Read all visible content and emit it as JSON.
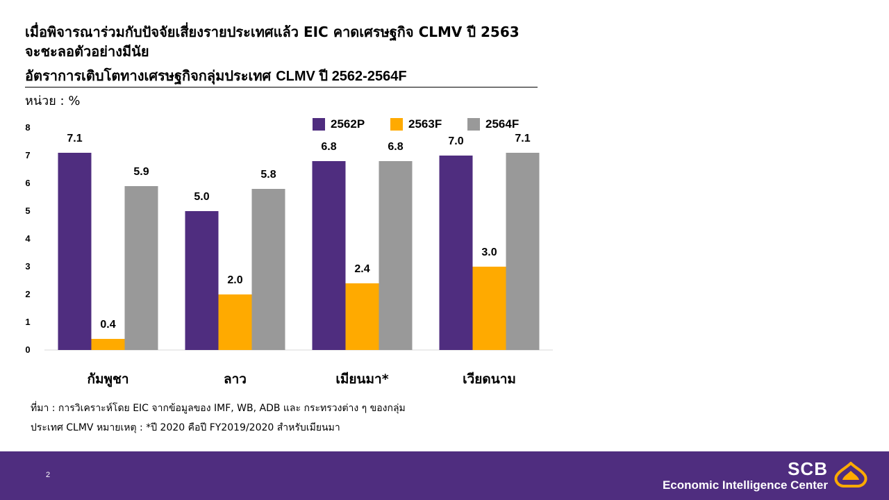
{
  "headline": {
    "line1": "เมื่อพิจารณาร่วมกับปัจจัยเสี่ยงรายประเทศแล้ว EIC คาดเศรษฐกิจ CLMV ปี 2563",
    "line2": "จะชะลอตัวอย่างมีนัย"
  },
  "chart_title": {
    "thai": "อัตราการเติบโตทางเศรษฐกิจกลุ่มประเทศ",
    "latin": "CLMV ปี 2562-2564F"
  },
  "unit_label": "หน่วย : %",
  "chart_data": {
    "type": "bar",
    "categories": [
      "กัมพูชา",
      "ลาว",
      "เมียนมา*",
      "เวียดนาม"
    ],
    "series": [
      {
        "name": "2562P",
        "color": "#4f2d7f",
        "values": [
          7.1,
          5.0,
          6.8,
          7.0
        ],
        "labels": [
          "7.1",
          "5.0",
          "6.8",
          "7.0"
        ]
      },
      {
        "name": "2563F",
        "color": "#ffaa00",
        "values": [
          0.4,
          2.0,
          2.4,
          3.0
        ],
        "labels": [
          "0.4",
          "2.0",
          "2.4",
          "3.0"
        ]
      },
      {
        "name": "2564F",
        "color": "#999999",
        "values": [
          5.9,
          5.8,
          6.8,
          7.1
        ],
        "labels": [
          "5.9",
          "5.8",
          "6.8",
          "7.1"
        ]
      }
    ],
    "ylim": [
      0,
      8
    ],
    "yticks": [
      "0",
      "1",
      "2",
      "3",
      "4",
      "5",
      "6",
      "7",
      "8"
    ],
    "grid": false,
    "legend_position": "top-right"
  },
  "source": {
    "line1": "ที่มา : การวิเคราะห์โดย EIC จากข้อมูลของ IMF, WB, ADB และ กระทรวงต่าง ๆ ของกลุ่ม",
    "line2": "ประเทศ CLMV หมายเหตุ : *ปี 2020 คือปี FY2019/2020 สำหรับเมียนมา"
  },
  "footer": {
    "page_number": "2",
    "brand_top": "SCB",
    "brand_bottom": "Economic Intelligence Center",
    "background_color": "#4f2d7f",
    "logo_color": "#ffaa00"
  }
}
